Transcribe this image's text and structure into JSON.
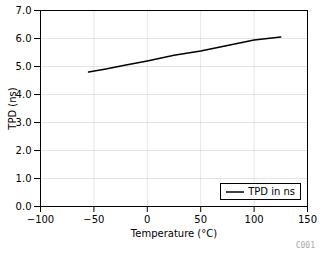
{
  "chart_data": {
    "type": "line",
    "xlabel": "Temperature (°C)",
    "ylabel": "TPD (ns)",
    "x": [
      -55,
      -40,
      -20,
      0,
      25,
      50,
      75,
      100,
      125
    ],
    "series": [
      {
        "name": "TPD in ns",
        "color": "#000000",
        "line_style": "solid",
        "values": [
          4.8,
          4.9,
          5.05,
          5.2,
          5.4,
          5.55,
          5.75,
          5.95,
          6.05
        ]
      }
    ],
    "xlim": [
      -100,
      150
    ],
    "ylim": [
      0,
      7
    ],
    "xticks": [
      -100,
      -50,
      0,
      50,
      100,
      150
    ],
    "yticks": [
      0,
      1,
      2,
      3,
      4,
      5,
      6,
      7
    ],
    "grid": true,
    "legend": "lower right",
    "annotations": [
      {
        "text": "C001",
        "color": "#aaaaaa"
      }
    ]
  }
}
